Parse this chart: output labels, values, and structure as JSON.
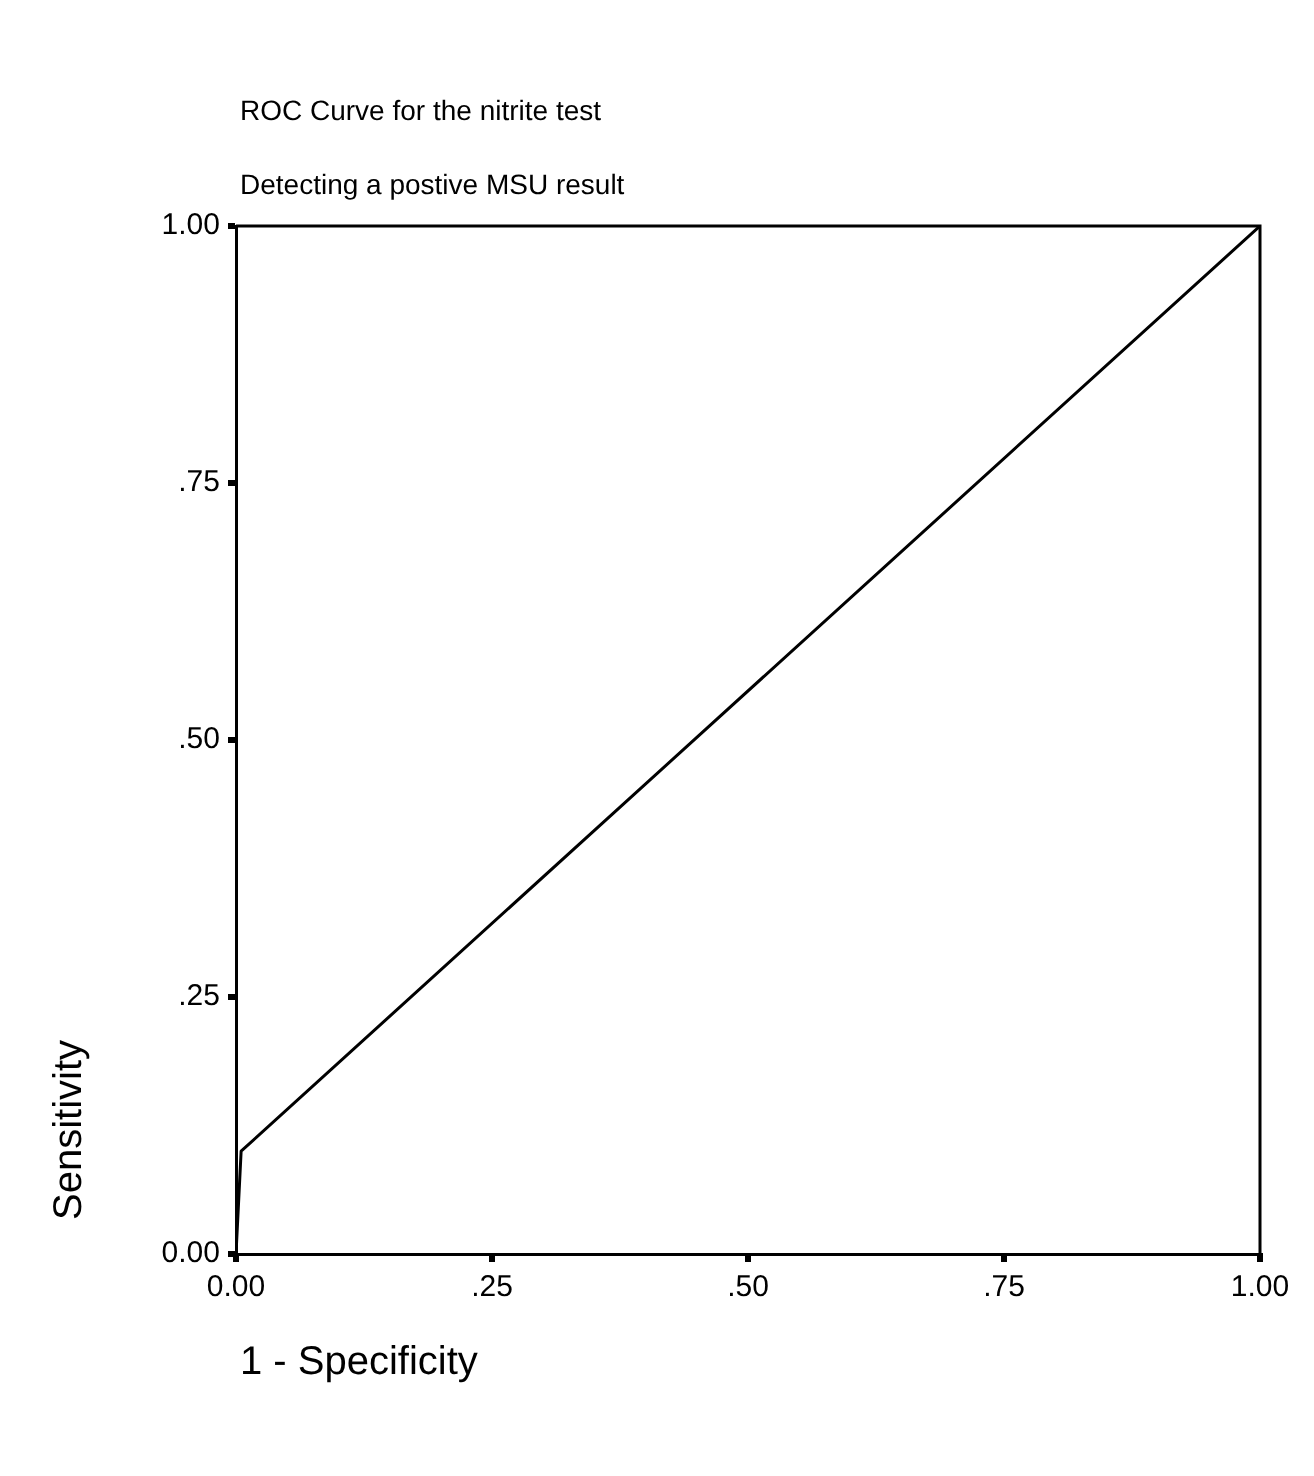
{
  "chart_data": {
    "type": "line",
    "title": "ROC Curve for the nitrite test",
    "subtitle": "Detecting a postive MSU result",
    "xlabel": "1 - Specificity",
    "ylabel": "Sensitivity",
    "x": [
      0,
      0.005,
      1
    ],
    "series": [
      {
        "color": "#000000",
        "values": [
          0,
          0.1,
          1
        ]
      }
    ],
    "xlim": [
      0,
      1
    ],
    "ylim": [
      0,
      1
    ],
    "xticks": [
      {
        "value": 0,
        "label": "0.00"
      },
      {
        "value": 0.25,
        "label": ".25"
      },
      {
        "value": 0.5,
        "label": ".50"
      },
      {
        "value": 0.75,
        "label": ".75"
      },
      {
        "value": 1,
        "label": "1.00"
      }
    ],
    "yticks": [
      {
        "value": 0,
        "label": "0.00"
      },
      {
        "value": 0.25,
        "label": ".25"
      },
      {
        "value": 0.5,
        "label": ".50"
      },
      {
        "value": 0.75,
        "label": ".75"
      },
      {
        "value": 1,
        "label": "1.00"
      }
    ],
    "grid": false,
    "legend": false,
    "marker": "none",
    "line_style": "solid"
  }
}
